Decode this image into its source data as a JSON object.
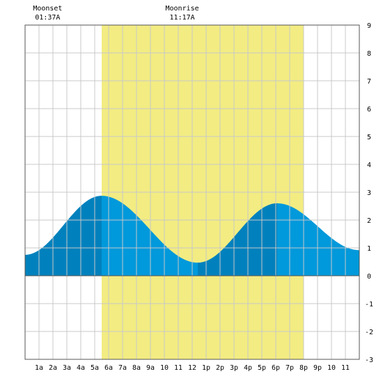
{
  "chart_data": {
    "type": "area",
    "title": "",
    "xlabel": "",
    "ylabel": "",
    "x_range_hours": [
      0,
      24
    ],
    "ylim": [
      -3,
      9
    ],
    "y_ticks": [
      -3,
      -2,
      -1,
      0,
      1,
      2,
      3,
      4,
      5,
      6,
      7,
      8,
      9
    ],
    "x_tick_labels": [
      {
        "hour": 1,
        "label": "1a"
      },
      {
        "hour": 2,
        "label": "2a"
      },
      {
        "hour": 3,
        "label": "3a"
      },
      {
        "hour": 4,
        "label": "4a"
      },
      {
        "hour": 5,
        "label": "5a"
      },
      {
        "hour": 6,
        "label": "6a"
      },
      {
        "hour": 7,
        "label": "7a"
      },
      {
        "hour": 8,
        "label": "8a"
      },
      {
        "hour": 9,
        "label": "9a"
      },
      {
        "hour": 10,
        "label": "10"
      },
      {
        "hour": 11,
        "label": "11"
      },
      {
        "hour": 12,
        "label": "12"
      },
      {
        "hour": 13,
        "label": "1p"
      },
      {
        "hour": 14,
        "label": "2p"
      },
      {
        "hour": 15,
        "label": "3p"
      },
      {
        "hour": 16,
        "label": "4p"
      },
      {
        "hour": 17,
        "label": "5p"
      },
      {
        "hour": 18,
        "label": "6p"
      },
      {
        "hour": 19,
        "label": "7p"
      },
      {
        "hour": 20,
        "label": "8p"
      },
      {
        "hour": 21,
        "label": "9p"
      },
      {
        "hour": 22,
        "label": "10"
      },
      {
        "hour": 23,
        "label": "11"
      }
    ],
    "grid": true,
    "daylight_hours": [
      5.5,
      20.0
    ],
    "tide_extremes": [
      {
        "hour": 0.0,
        "height": 0.75,
        "kind": "start"
      },
      {
        "hour": 5.5,
        "height": 2.87,
        "kind": "high"
      },
      {
        "hour": 12.4,
        "height": 0.47,
        "kind": "low"
      },
      {
        "hour": 18.1,
        "height": 2.6,
        "kind": "high"
      },
      {
        "hour": 24.0,
        "height": 0.92,
        "kind": "end"
      }
    ],
    "dark_shading_hours": [
      [
        0,
        5.5
      ],
      [
        12.4,
        18.1
      ]
    ],
    "moon_events": [
      {
        "name": "Moonset",
        "time": "01:37A",
        "hour": 1.62
      },
      {
        "name": "Moonrise",
        "time": "11:17A",
        "hour": 11.28
      }
    ]
  },
  "colors": {
    "daylight": "#f2ec82",
    "tide_light": "#0099db",
    "tide_dark": "#0081bd",
    "grid": "#c8c8c8",
    "border": "#555555",
    "background": "#ffffff"
  }
}
